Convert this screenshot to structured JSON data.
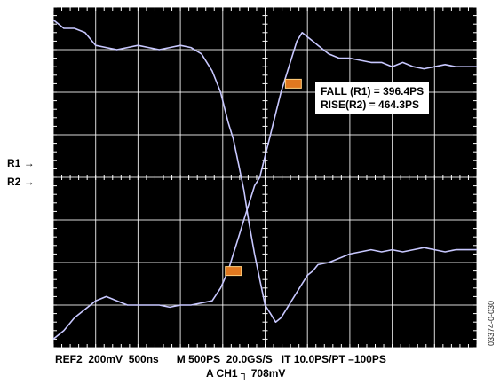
{
  "measurements": {
    "fall": "FALL (R1) = 396.4PS",
    "rise": "RISE(R2) = 464.3PS"
  },
  "markers": {
    "r1": "R1",
    "r2": "R2"
  },
  "footer": {
    "line1": "REF2  200mV  500ns      M 500PS  20.0GS/S   IT 10.0PS/PT –100PS",
    "line2": "A CH1 ┐ 708mV"
  },
  "figure_id": "03374-0-030",
  "colors": {
    "screen": "#000000",
    "grid": "#ffffff",
    "trace": "#c8c8ff",
    "cursor": "#e07820"
  },
  "chart_data": {
    "type": "line",
    "title": "",
    "xlabel": "",
    "ylabel": "",
    "xlim": [
      -2000,
      2000
    ],
    "ylim": [
      -4,
      4
    ],
    "grid": true,
    "series": [
      {
        "x": [
          -2000,
          -1900,
          -1800,
          -1700,
          -1600,
          -1500,
          -1400,
          -1300,
          -1200,
          -1100,
          -1000,
          -900,
          -800,
          -700,
          -600,
          -500,
          -420,
          -350,
          -300,
          -250,
          -200,
          -150,
          -100,
          -50,
          0,
          50,
          100,
          150,
          200,
          250,
          300,
          350,
          400,
          450,
          500,
          600,
          700,
          800,
          900,
          1000,
          1100,
          1200,
          1300,
          1400,
          1500,
          1600,
          1700,
          1800,
          1900,
          2000
        ],
        "y": [
          3.7,
          3.5,
          3.5,
          3.4,
          3.1,
          3.05,
          3.0,
          3.05,
          3.1,
          3.05,
          3.0,
          3.05,
          3.1,
          3.05,
          2.9,
          2.5,
          2.0,
          1.3,
          0.9,
          0.3,
          -0.3,
          -1.1,
          -1.8,
          -2.4,
          -3.0,
          -3.2,
          -3.4,
          -3.3,
          -3.1,
          -2.9,
          -2.7,
          -2.5,
          -2.3,
          -2.2,
          -2.05,
          -2.0,
          -1.9,
          -1.8,
          -1.75,
          -1.7,
          -1.75,
          -1.7,
          -1.75,
          -1.7,
          -1.65,
          -1.7,
          -1.75,
          -1.7,
          -1.7,
          -1.7
        ]
      },
      {
        "x": [
          -2000,
          -1900,
          -1800,
          -1700,
          -1600,
          -1500,
          -1400,
          -1300,
          -1200,
          -1100,
          -1000,
          -900,
          -800,
          -700,
          -600,
          -500,
          -420,
          -350,
          -300,
          -250,
          -200,
          -150,
          -100,
          -50,
          0,
          50,
          100,
          150,
          200,
          250,
          300,
          350,
          400,
          450,
          500,
          600,
          700,
          800,
          900,
          1000,
          1100,
          1200,
          1300,
          1400,
          1500,
          1600,
          1700,
          1800,
          1900,
          2000
        ],
        "y": [
          -3.8,
          -3.6,
          -3.3,
          -3.1,
          -2.9,
          -2.8,
          -2.9,
          -3.0,
          -3.0,
          -3.0,
          -3.0,
          -3.05,
          -3.0,
          -3.0,
          -2.95,
          -2.9,
          -2.6,
          -2.2,
          -1.8,
          -1.4,
          -1.0,
          -0.6,
          -0.2,
          0.0,
          0.5,
          1.0,
          1.5,
          2.0,
          2.4,
          2.8,
          3.2,
          3.4,
          3.3,
          3.2,
          3.1,
          2.9,
          2.8,
          2.8,
          2.75,
          2.7,
          2.7,
          2.6,
          2.7,
          2.6,
          2.55,
          2.6,
          2.65,
          2.6,
          2.6,
          2.6
        ]
      }
    ],
    "cursors": [
      {
        "x": 267,
        "y": 2.2
      },
      {
        "x": -300,
        "y": -2.2
      }
    ]
  }
}
